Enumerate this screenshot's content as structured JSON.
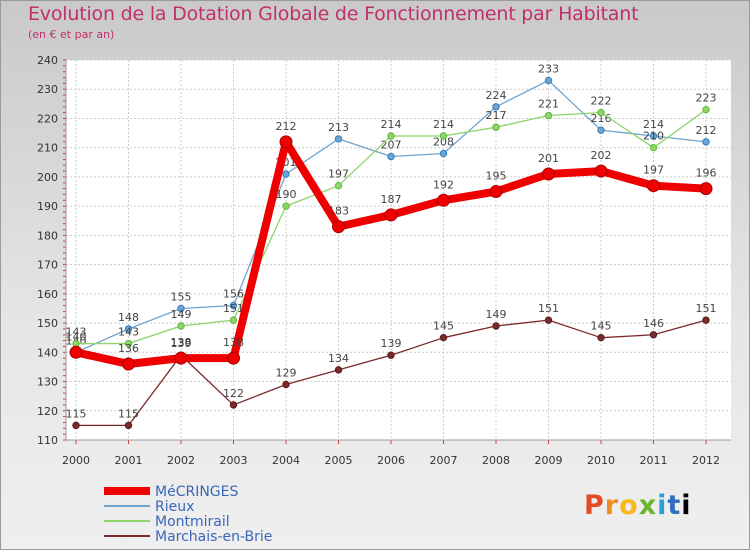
{
  "header": {
    "title": "Evolution de la Dotation Globale de Fonctionnement par Habitant",
    "subtitle": "(en € et par an)"
  },
  "logo": {
    "letters": [
      "P",
      "r",
      "o",
      "x",
      "i",
      "t",
      "i"
    ]
  },
  "chart_data": {
    "type": "line",
    "title": "Evolution de la Dotation Globale de Fonctionnement par Habitant",
    "subtitle": "(en € et par an)",
    "xlabel": "",
    "ylabel": "",
    "ylim": [
      110,
      240
    ],
    "yticks": [
      110,
      120,
      130,
      140,
      150,
      160,
      170,
      180,
      190,
      200,
      210,
      220,
      230,
      240
    ],
    "grid": true,
    "legend_position": "bottom-left",
    "x": [
      "2000",
      "2001",
      "2002",
      "2003",
      "2004",
      "2005",
      "2006",
      "2007",
      "2008",
      "2009",
      "2010",
      "2011",
      "2012"
    ],
    "series": [
      {
        "name": "MéCRINGES",
        "color": "#ee0000",
        "emphasis": true,
        "values": [
          140,
          136,
          138,
          138,
          212,
          183,
          187,
          192,
          195,
          201,
          202,
          197,
          196
        ]
      },
      {
        "name": "Rieux",
        "color": "#6fa4cf",
        "emphasis": false,
        "values": [
          140,
          148,
          155,
          156,
          201,
          213,
          207,
          208,
          224,
          233,
          216,
          214,
          212
        ]
      },
      {
        "name": "Montmirail",
        "color": "#8ed468",
        "emphasis": false,
        "values": [
          143,
          143,
          149,
          151,
          190,
          197,
          214,
          214,
          217,
          221,
          222,
          210,
          223
        ]
      },
      {
        "name": "Marchais-en-Brie",
        "color": "#7a2a2a",
        "emphasis": false,
        "values": [
          115,
          115,
          139,
          122,
          129,
          134,
          139,
          145,
          149,
          151,
          145,
          146,
          151
        ]
      }
    ]
  }
}
